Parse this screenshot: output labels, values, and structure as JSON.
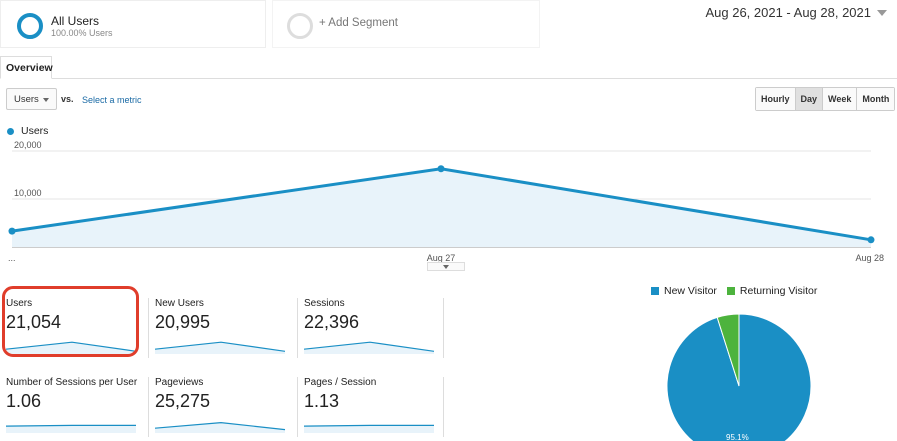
{
  "segments": {
    "all": {
      "title": "All Users",
      "subtitle": "100.00% Users"
    },
    "add_label": "+ Add Segment"
  },
  "date_range": "Aug 26, 2021 - Aug 28, 2021",
  "tabs": [
    "Overview"
  ],
  "toolbar": {
    "metric": "Users",
    "vs": "vs.",
    "select_metric": "Select a metric",
    "granularity": [
      "Hourly",
      "Day",
      "Week",
      "Month"
    ],
    "granularity_active": "Day"
  },
  "chart_data": {
    "type": "area",
    "series": [
      {
        "name": "Users",
        "values": [
          3300,
          16300,
          1500
        ]
      }
    ],
    "x": [
      "...",
      "Aug 27",
      "Aug 28"
    ],
    "yticks": [
      "20,000",
      "10,000"
    ],
    "ylim": [
      0,
      20000
    ],
    "color": "#1a8fc5"
  },
  "scorecards": [
    {
      "label": "Users",
      "value": "21,054",
      "spark": [
        0.2,
        0.7,
        0.05
      ]
    },
    {
      "label": "New Users",
      "value": "20,995",
      "spark": [
        0.2,
        0.7,
        0.05
      ]
    },
    {
      "label": "Sessions",
      "value": "22,396",
      "spark": [
        0.2,
        0.7,
        0.05
      ]
    },
    {
      "label": "Number of Sessions per User",
      "value": "1.06",
      "spark": [
        0.35,
        0.4,
        0.4
      ]
    },
    {
      "label": "Pageviews",
      "value": "25,275",
      "spark": [
        0.2,
        0.6,
        0.1
      ]
    },
    {
      "label": "Pages / Session",
      "value": "1.13",
      "spark": [
        0.35,
        0.4,
        0.4
      ]
    }
  ],
  "pie": {
    "legend": [
      {
        "name": "New Visitor",
        "color": "#1a8fc5",
        "value": 95.1
      },
      {
        "name": "Returning Visitor",
        "color": "#4db33d",
        "value": 4.9
      }
    ],
    "label": "95.1%"
  }
}
